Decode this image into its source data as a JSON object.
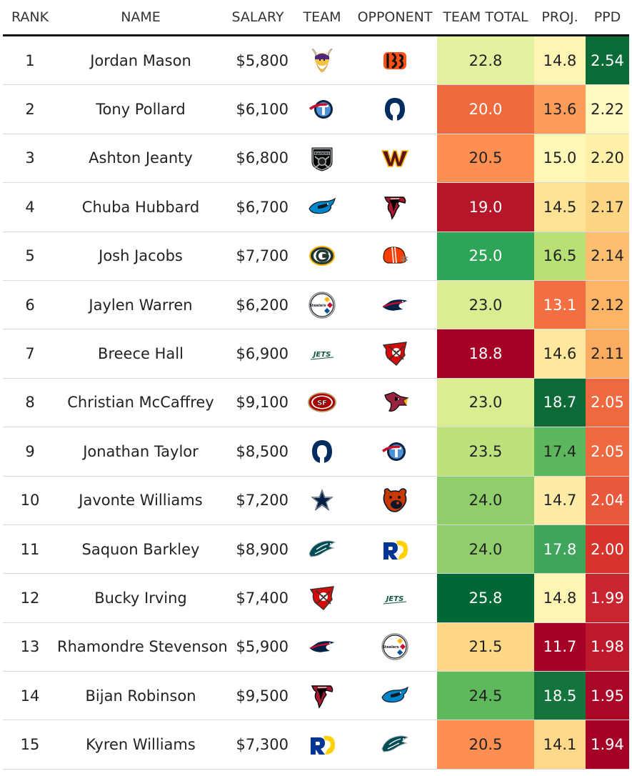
{
  "headers": {
    "rank": "RANK",
    "name": "NAME",
    "salary": "SALARY",
    "team": "TEAM",
    "opponent": "OPPONENT",
    "team_total": "TEAM TOTAL",
    "proj": "PROJ.",
    "ppd": "PPD"
  },
  "rows": [
    {
      "rank": "1",
      "name": "Jordan Mason",
      "salary": "$5,800",
      "team": "vikings-logo",
      "opponent": "bengals-logo",
      "team_total": "22.8",
      "proj": "14.8",
      "ppd": "2.54",
      "tt_color": "#e4f1a0",
      "proj_color": "#fef4b4",
      "ppd_color": "#0a6b36",
      "tt_text": "#222222",
      "proj_text": "#222222",
      "ppd_text": "#ffffff"
    },
    {
      "rank": "2",
      "name": "Tony Pollard",
      "salary": "$6,100",
      "team": "titans-logo",
      "opponent": "colts-logo",
      "team_total": "20.0",
      "proj": "13.6",
      "ppd": "2.22",
      "tt_color": "#ee6a3f",
      "proj_color": "#fb9d59",
      "ppd_color": "#fff8c0",
      "tt_text": "#ffffff",
      "proj_text": "#222222",
      "ppd_text": "#222222"
    },
    {
      "rank": "3",
      "name": "Ashton Jeanty",
      "salary": "$6,800",
      "team": "raiders-logo",
      "opponent": "commanders-logo",
      "team_total": "20.5",
      "proj": "15.0",
      "ppd": "2.20",
      "tt_color": "#fc8f51",
      "proj_color": "#fef8b8",
      "ppd_color": "#fff1a8",
      "tt_text": "#222222",
      "proj_text": "#222222",
      "ppd_text": "#222222"
    },
    {
      "rank": "4",
      "name": "Chuba Hubbard",
      "salary": "$6,700",
      "team": "panthers-logo",
      "opponent": "falcons-logo",
      "team_total": "19.0",
      "proj": "14.5",
      "ppd": "2.17",
      "tt_color": "#b6162a",
      "proj_color": "#fee396",
      "ppd_color": "#fed683",
      "tt_text": "#ffffff",
      "proj_text": "#222222",
      "ppd_text": "#222222"
    },
    {
      "rank": "5",
      "name": "Josh Jacobs",
      "salary": "$7,700",
      "team": "packers-logo",
      "opponent": "browns-logo",
      "team_total": "25.0",
      "proj": "16.5",
      "ppd": "2.14",
      "tt_color": "#2ea457",
      "proj_color": "#b7e075",
      "ppd_color": "#fdbf6f",
      "tt_text": "#ffffff",
      "proj_text": "#222222",
      "ppd_text": "#222222"
    },
    {
      "rank": "6",
      "name": "Jaylen Warren",
      "salary": "$6,200",
      "team": "steelers-logo",
      "opponent": "patriots-logo",
      "team_total": "23.0",
      "proj": "13.1",
      "ppd": "2.12",
      "tt_color": "#dbed93",
      "proj_color": "#f26e43",
      "ppd_color": "#fdb466",
      "tt_text": "#222222",
      "proj_text": "#ffffff",
      "ppd_text": "#222222"
    },
    {
      "rank": "7",
      "name": "Breece Hall",
      "salary": "$6,900",
      "team": "jets-logo",
      "opponent": "buccaneers-logo",
      "team_total": "18.8",
      "proj": "14.6",
      "ppd": "2.11",
      "tt_color": "#a50026",
      "proj_color": "#fee89e",
      "ppd_color": "#fcac61",
      "tt_text": "#ffffff",
      "proj_text": "#222222",
      "ppd_text": "#222222"
    },
    {
      "rank": "8",
      "name": "Christian McCaffrey",
      "salary": "$9,100",
      "team": "49ers-logo",
      "opponent": "cardinals-logo",
      "team_total": "23.0",
      "proj": "18.7",
      "ppd": "2.05",
      "tt_color": "#dbed93",
      "proj_color": "#0b6a36",
      "ppd_color": "#ef6940",
      "tt_text": "#222222",
      "proj_text": "#ffffff",
      "ppd_text": "#ffffff"
    },
    {
      "rank": "9",
      "name": "Jonathan Taylor",
      "salary": "$8,500",
      "team": "colts-logo",
      "opponent": "titans-logo",
      "team_total": "23.5",
      "proj": "17.4",
      "ppd": "2.05",
      "tt_color": "#bde27c",
      "proj_color": "#5cb75c",
      "ppd_color": "#ef6940",
      "tt_text": "#222222",
      "proj_text": "#222222",
      "ppd_text": "#ffffff"
    },
    {
      "rank": "10",
      "name": "Javonte Williams",
      "salary": "$7,200",
      "team": "cowboys-logo",
      "opponent": "bears-logo",
      "team_total": "24.0",
      "proj": "14.7",
      "ppd": "2.04",
      "tt_color": "#8fce6b",
      "proj_color": "#feeca6",
      "ppd_color": "#e9583a",
      "tt_text": "#222222",
      "proj_text": "#222222",
      "ppd_text": "#ffffff"
    },
    {
      "rank": "11",
      "name": "Saquon Barkley",
      "salary": "$8,900",
      "team": "eagles-logo",
      "opponent": "rams-logo",
      "team_total": "24.0",
      "proj": "17.8",
      "ppd": "2.00",
      "tt_color": "#8fce6b",
      "proj_color": "#3ea55a",
      "ppd_color": "#d7342c",
      "tt_text": "#222222",
      "proj_text": "#ffffff",
      "ppd_text": "#ffffff"
    },
    {
      "rank": "12",
      "name": "Bucky Irving",
      "salary": "$7,400",
      "team": "buccaneers-logo",
      "opponent": "jets-logo",
      "team_total": "25.8",
      "proj": "14.8",
      "ppd": "1.99",
      "tt_color": "#006837",
      "proj_color": "#fef4b4",
      "ppd_color": "#c92530",
      "tt_text": "#ffffff",
      "proj_text": "#222222",
      "ppd_text": "#ffffff"
    },
    {
      "rank": "13",
      "name": "Rhamondre Stevenson",
      "salary": "$5,900",
      "team": "patriots-logo",
      "opponent": "steelers-logo",
      "team_total": "21.5",
      "proj": "11.7",
      "ppd": "1.98",
      "tt_color": "#fed886",
      "proj_color": "#a50026",
      "ppd_color": "#bd192b",
      "tt_text": "#222222",
      "proj_text": "#ffffff",
      "ppd_text": "#ffffff"
    },
    {
      "rank": "14",
      "name": "Bijan Robinson",
      "salary": "$9,500",
      "team": "falcons-logo",
      "opponent": "panthers-logo",
      "team_total": "24.5",
      "proj": "18.5",
      "ppd": "1.95",
      "tt_color": "#5db95c",
      "proj_color": "#15733c",
      "ppd_color": "#ab0727",
      "tt_text": "#222222",
      "proj_text": "#ffffff",
      "ppd_text": "#ffffff"
    },
    {
      "rank": "15",
      "name": "Kyren Williams",
      "salary": "$7,300",
      "team": "rams-logo",
      "opponent": "eagles-logo",
      "team_total": "20.5",
      "proj": "14.1",
      "ppd": "1.94",
      "tt_color": "#fc8f51",
      "proj_color": "#fed98a",
      "ppd_color": "#a50026",
      "tt_text": "#222222",
      "proj_text": "#222222",
      "ppd_text": "#ffffff"
    }
  ]
}
